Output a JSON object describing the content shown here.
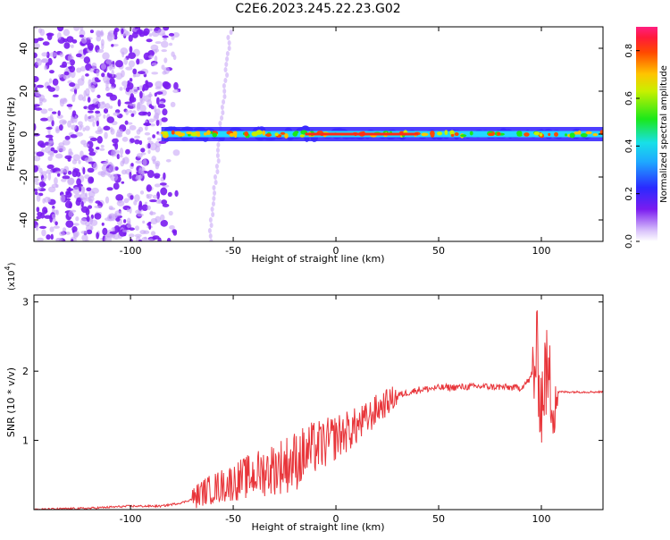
{
  "title": "C2E6.2023.245.22.23.G02",
  "colors": {
    "signal": "#e8353a",
    "scatter": "#7a1cf0",
    "scatter_light": "#c8a6f7",
    "ridge_core": "#ff2a1a",
    "ridge_mid": "#22d8ff",
    "ridge_edge": "#3a2aff"
  },
  "colorbar": {
    "label": "Normalized spectral amplitude",
    "ticks": [
      "0.0",
      "0.2",
      "0.4",
      "0.6",
      "0.8"
    ]
  },
  "chart_data": [
    {
      "type": "heatmap",
      "xlabel": "Height of straight line (km)",
      "ylabel": "Frequency (Hz)",
      "xlim": [
        -147,
        130
      ],
      "ylim": [
        -50,
        50
      ],
      "xticks": [
        -100,
        -50,
        0,
        50,
        100
      ],
      "xtick_labels": [
        "-100",
        "-50",
        "0",
        "50",
        "100"
      ],
      "yticks": [
        -40,
        -20,
        0,
        20,
        40
      ],
      "ytick_labels": [
        "-40",
        "-20",
        "0",
        "20",
        "40"
      ],
      "value_range": [
        0.0,
        0.9
      ],
      "description_regions": {
        "noise_x_range": [
          -147,
          -85
        ],
        "ridge_x_range": [
          -85,
          130
        ],
        "ridge_center_hz": 0
      }
    },
    {
      "type": "line",
      "xlabel": "Height of straight line (km)",
      "ylabel": "SNR (10 * v/v)",
      "y_multiplier": "(x10",
      "y_multiplier_exp": "4",
      "y_multiplier_close": ")",
      "xlim": [
        -147,
        130
      ],
      "ylim": [
        0,
        3.1
      ],
      "xticks": [
        -100,
        -50,
        0,
        50,
        100
      ],
      "xtick_labels": [
        "-100",
        "-50",
        "0",
        "50",
        "100"
      ],
      "yticks": [
        1,
        2,
        3
      ],
      "ytick_labels": [
        "1",
        "2",
        "3"
      ],
      "series": [
        {
          "x": [
            -147,
            -120,
            -100,
            -85,
            -75,
            -70,
            -65,
            -60,
            -55,
            -50,
            -45,
            -40,
            -35,
            -30,
            -25,
            -20,
            -15,
            -10,
            -5,
            0,
            5,
            10,
            15,
            20,
            25,
            30,
            40,
            50,
            60,
            70,
            80,
            90,
            95,
            98,
            100,
            102,
            105,
            110,
            120,
            130
          ],
          "values": [
            0.0,
            0.02,
            0.05,
            0.05,
            0.1,
            0.15,
            0.25,
            0.3,
            0.35,
            0.4,
            0.45,
            0.5,
            0.55,
            0.6,
            0.65,
            0.7,
            0.8,
            0.9,
            0.95,
            1.05,
            1.12,
            1.2,
            1.3,
            1.45,
            1.55,
            1.65,
            1.73,
            1.76,
            1.77,
            1.78,
            1.77,
            1.76,
            1.9,
            2.2,
            1.5,
            2.0,
            1.7,
            1.7,
            1.7,
            1.7
          ]
        }
      ]
    }
  ]
}
